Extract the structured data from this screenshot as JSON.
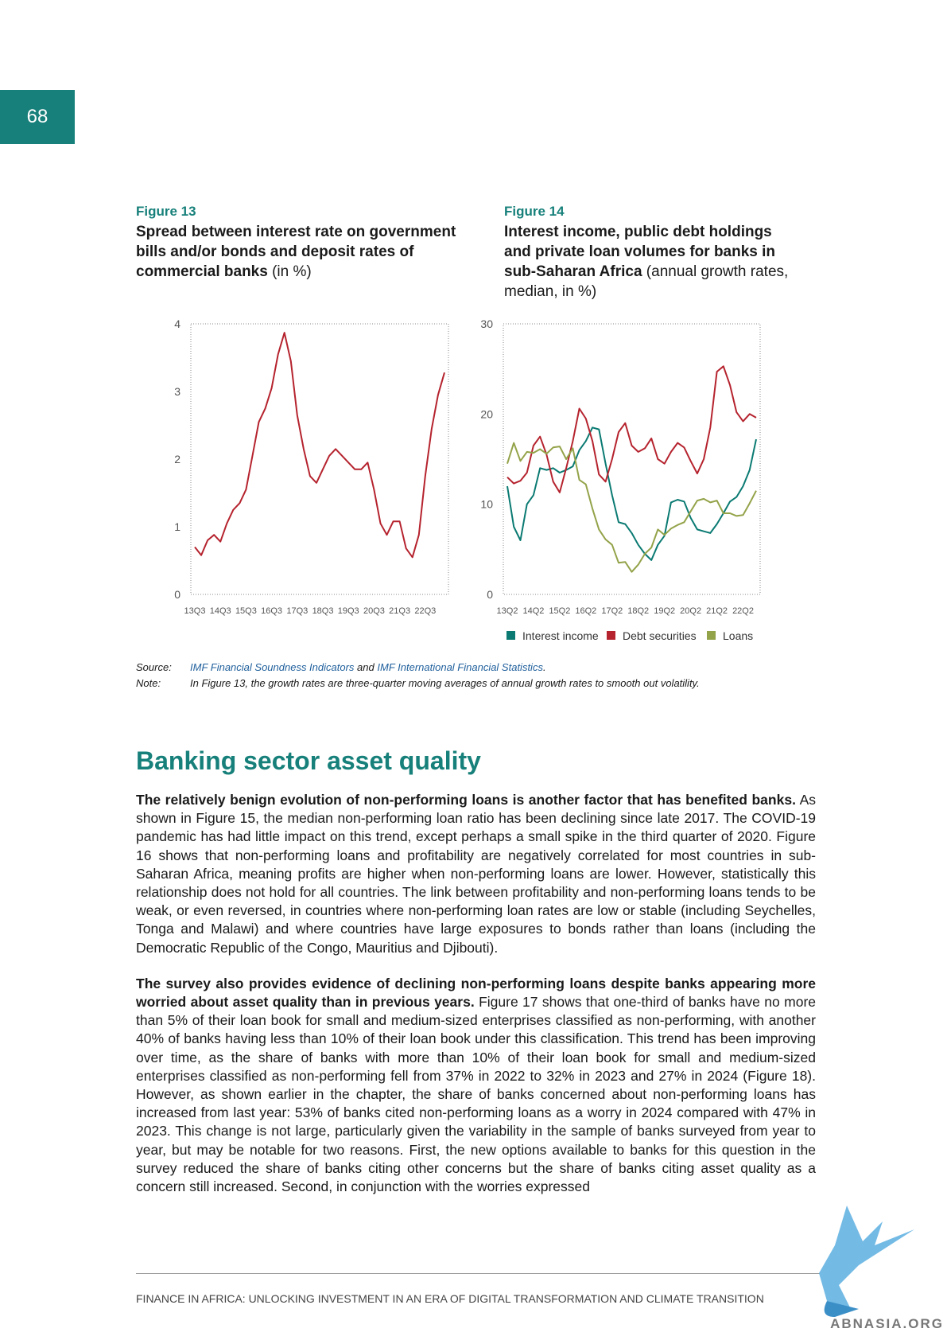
{
  "page_number": "68",
  "chart_data": [
    {
      "type": "line",
      "label": "Figure 13",
      "title": "Spread between interest rate on government bills and/or bonds and deposit rates of commercial banks",
      "title_unit": "(in %)",
      "categories": [
        "13Q3",
        null,
        null,
        null,
        "14Q3",
        null,
        null,
        null,
        "15Q3",
        null,
        null,
        null,
        "16Q3",
        null,
        null,
        null,
        "17Q3",
        null,
        null,
        null,
        "18Q3",
        null,
        null,
        null,
        "19Q3",
        null,
        null,
        null,
        "20Q3",
        null,
        null,
        null,
        "21Q3",
        null,
        null,
        null,
        "22Q3",
        null,
        null,
        null
      ],
      "values": [
        0.7,
        0.58,
        0.8,
        0.88,
        0.78,
        1.05,
        1.25,
        1.35,
        1.55,
        2.05,
        2.55,
        2.75,
        3.05,
        3.55,
        3.87,
        3.45,
        2.65,
        2.15,
        1.75,
        1.65,
        1.85,
        2.05,
        2.15,
        2.05,
        1.95,
        1.85,
        1.85,
        1.95,
        1.55,
        1.05,
        0.88,
        1.08,
        1.08,
        0.68,
        0.55,
        0.88,
        1.75,
        2.45,
        2.95,
        3.28
      ],
      "color": "#b5232e",
      "ylim": [
        0,
        4
      ],
      "yticks": [
        0,
        1,
        2,
        3,
        4
      ]
    },
    {
      "type": "line",
      "label": "Figure 14",
      "title": "Interest income, public debt holdings and private loan volumes for banks in sub-Saharan Africa",
      "title_unit": "(annual growth rates, median, in %)",
      "categories": [
        "13Q2",
        null,
        null,
        null,
        "14Q2",
        null,
        null,
        null,
        "15Q2",
        null,
        null,
        null,
        "16Q2",
        null,
        null,
        null,
        "17Q2",
        null,
        null,
        null,
        "18Q2",
        null,
        null,
        null,
        "19Q2",
        null,
        null,
        null,
        "20Q2",
        null,
        null,
        null,
        "21Q2",
        null,
        null,
        null,
        "22Q2",
        null,
        null
      ],
      "series": [
        {
          "name": "Interest income",
          "color": "#0a7a72",
          "values": [
            12,
            7.5,
            6,
            10,
            11,
            14,
            13.8,
            14,
            13.5,
            13.8,
            14.2,
            16,
            17,
            18.5,
            18.3,
            14.5,
            11,
            8,
            7.8,
            6.8,
            5.5,
            4.5,
            3.8,
            5.5,
            6.5,
            10.2,
            10.5,
            10.3,
            8.5,
            7.2,
            7,
            6.8,
            7.8,
            9,
            10.3,
            10.8,
            12,
            13.8,
            17.2
          ]
        },
        {
          "name": "Debt securities",
          "color": "#b5232e",
          "values": [
            13,
            12.3,
            12.6,
            13.5,
            16.5,
            17.5,
            15.5,
            12.5,
            11.3,
            14,
            17,
            20.6,
            19.5,
            17,
            13.3,
            12.5,
            15,
            18,
            19,
            16.5,
            15.8,
            16.2,
            17.3,
            15,
            14.5,
            15.8,
            16.8,
            16.3,
            14.8,
            13.4,
            15,
            18.5,
            24.7,
            25.3,
            23.2,
            20.2,
            19.2,
            20,
            19.6
          ]
        },
        {
          "name": "Loans",
          "color": "#93a349",
          "values": [
            14.5,
            16.8,
            14.8,
            15.8,
            15.7,
            16.1,
            15.6,
            16.3,
            16.4,
            15,
            16.2,
            12.7,
            12.2,
            9.5,
            7.2,
            6.1,
            5.5,
            3.5,
            3.6,
            2.5,
            3.3,
            4.5,
            5.2,
            7.2,
            6.6,
            7.3,
            7.7,
            8,
            9.2,
            10.4,
            10.6,
            10.2,
            10.4,
            9,
            9,
            8.7,
            8.8,
            10.1,
            11.5
          ]
        }
      ],
      "ylim": [
        0,
        30
      ],
      "yticks": [
        0,
        10,
        20,
        30
      ]
    }
  ],
  "source": {
    "label": "Source:",
    "link1": "IMF Financial Soundness Indicators",
    "joiner": "and",
    "link2": "IMF International Financial Statistics",
    "end": "."
  },
  "note": {
    "label": "Note:",
    "text": "In Figure 13, the growth rates are three-quarter moving averages of annual growth rates to smooth out volatility."
  },
  "section": {
    "heading": "Banking sector asset quality",
    "paragraphs": [
      {
        "lead": "The relatively benign evolution of non-performing loans is another factor that has benefited banks.",
        "text": "As shown in Figure 15, the median non-performing loan ratio has been declining since late 2017. The COVID-19 pandemic has had little impact on this trend, except perhaps a small spike in the third quarter of 2020. Figure 16 shows that non-performing loans and profitability are negatively correlated for most countries in sub-Saharan Africa, meaning profits are higher when non-performing loans are lower. However, statistically this relationship does not hold for all countries. The link between profitability and non-performing loans tends to be weak, or even reversed, in countries where non-performing loan rates are low or stable (including Seychelles, Tonga and Malawi) and where countries have large exposures to bonds rather than loans (including the Democratic Republic of the Congo, Mauritius and Djibouti)."
      },
      {
        "lead": "The survey also provides evidence of declining non-performing loans despite banks appearing more worried about asset quality than in previous years.",
        "text": "Figure 17 shows that one-third of banks have no more than 5% of their loan book for small and medium-sized enterprises classified as non-performing, with another 40% of banks having less than 10% of their loan book under this classification. This trend has been improving over time, as the share of banks with more than 10% of their loan book for small and medium-sized enterprises classified as non-performing fell from 37% in 2022 to 32% in 2023 and 27% in 2024 (Figure 18). However, as shown earlier in the chapter, the share of banks concerned about non-performing loans has increased from last year: 53% of banks cited non-performing loans as a worry in 2024 compared with 47% in 2023. This change is not large, particularly given the variability in the sample of banks surveyed from year to year, but may be notable for two reasons. First, the new options available to banks for this question in the survey reduced the share of banks citing other concerns but the share of banks citing asset quality as a concern still increased. Second, in conjunction with the worries expressed"
      }
    ]
  },
  "footer": "FINANCE IN AFRICA: UNLOCKING INVESTMENT IN AN ERA OF DIGITAL TRANSFORMATION AND CLIMATE TRANSITION",
  "watermark": "ABNASIA.ORG"
}
